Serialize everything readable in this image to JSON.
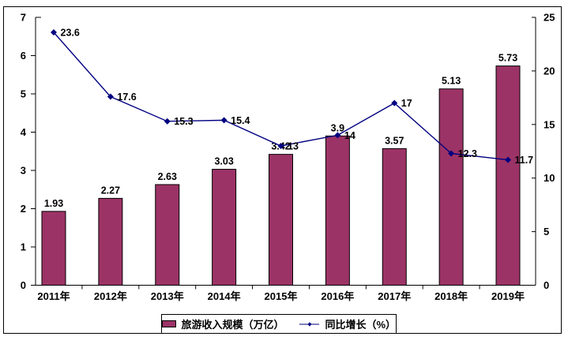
{
  "figure": {
    "background": "#ffffff",
    "frame_color": "#000000"
  },
  "chart_data": {
    "type": "combo-bar-line",
    "title": "",
    "categories": [
      "2011年",
      "2012年",
      "2013年",
      "2014年",
      "2015年",
      "2016年",
      "2017年",
      "2018年",
      "2019年"
    ],
    "series": [
      {
        "name": "旅游收入规模（万亿）",
        "type": "bar",
        "axis": "left",
        "color": "#9C3366",
        "border_color": "#000000",
        "values": [
          1.93,
          2.27,
          2.63,
          3.03,
          3.42,
          3.9,
          3.57,
          5.13,
          5.73
        ],
        "labels": [
          "1.93",
          "2.27",
          "2.63",
          "3.03",
          "3.42",
          "3.9",
          "3.57",
          "5.13",
          "5.73"
        ]
      },
      {
        "name": "同比增长（%）",
        "type": "line",
        "axis": "right",
        "color": "#000080",
        "marker": "diamond",
        "values": [
          23.6,
          17.6,
          15.3,
          15.4,
          13,
          14,
          17,
          12.3,
          11.7
        ],
        "labels": [
          "23.6",
          "17.6",
          "15.3",
          "15.4",
          "13",
          "14",
          "17",
          "12.3",
          "11.7"
        ]
      }
    ],
    "left_axis": {
      "min": 0,
      "max": 7,
      "step": 1,
      "tick_labels": [
        "0",
        "1",
        "2",
        "3",
        "4",
        "5",
        "6",
        "7"
      ]
    },
    "right_axis": {
      "min": 0,
      "max": 25,
      "step": 5,
      "tick_labels": [
        "0",
        "5",
        "10",
        "15",
        "20",
        "25"
      ]
    },
    "grid": false,
    "legend_position": "bottom"
  }
}
